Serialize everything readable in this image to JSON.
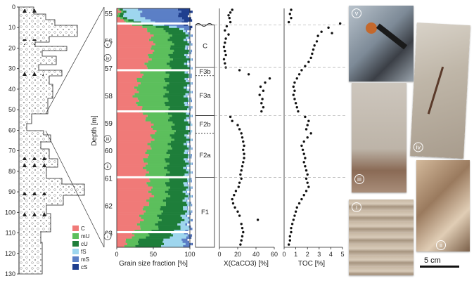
{
  "colors": {
    "C": "#f07a78",
    "mU": "#5cbf5c",
    "cU": "#1e7e3a",
    "fS": "#9ed6ee",
    "mS": "#5b7fc6",
    "cS": "#1f3f8f"
  },
  "log": {
    "depth_ticks": [
      "0",
      "10",
      "20",
      "30",
      "40",
      "50",
      "60",
      "70",
      "80",
      "90",
      "100",
      "110",
      "120",
      "130"
    ],
    "depth_label": "Depth [m]"
  },
  "legend": [
    {
      "key": "C",
      "label": "C"
    },
    {
      "key": "mU",
      "label": "mU"
    },
    {
      "key": "cU",
      "label": "cU"
    },
    {
      "key": "fS",
      "label": "fS"
    },
    {
      "key": "mS",
      "label": "mS"
    },
    {
      "key": "cS",
      "label": "cS"
    }
  ],
  "core_depths": [
    "55",
    "56",
    "57",
    "58",
    "59",
    "60",
    "61",
    "62",
    "63"
  ],
  "sample_markers": [
    "v",
    "iv",
    "iii",
    "ii",
    "i"
  ],
  "units": [
    "C",
    "F3b",
    "F3a",
    "F2b",
    "F2a",
    "F1"
  ],
  "chart_data": [
    {
      "type": "bar",
      "title": "",
      "xlabel": "Grain size fraction [%]",
      "xlim": [
        0,
        100
      ],
      "x_ticks": [
        "0",
        "50",
        "100"
      ],
      "series_names": [
        "C",
        "mU",
        "cU",
        "fS",
        "mS",
        "cS"
      ],
      "depth_range_m": [
        54.8,
        63.5
      ],
      "profile": [
        {
          "d": 54.8,
          "C": 2,
          "mU": 2,
          "cU": 4,
          "fS": 20,
          "mS": 55,
          "cS": 17
        },
        {
          "d": 55.2,
          "C": 3,
          "mU": 4,
          "cU": 6,
          "fS": 25,
          "mS": 50,
          "cS": 12
        },
        {
          "d": 55.6,
          "C": 45,
          "mU": 25,
          "cU": 24,
          "fS": 4,
          "mS": 2,
          "cS": 0
        },
        {
          "d": 56.2,
          "C": 50,
          "mU": 26,
          "cU": 20,
          "fS": 3,
          "mS": 1,
          "cS": 0
        },
        {
          "d": 56.8,
          "C": 42,
          "mU": 30,
          "cU": 24,
          "fS": 3,
          "mS": 1,
          "cS": 0
        },
        {
          "d": 57.4,
          "C": 30,
          "mU": 38,
          "cU": 28,
          "fS": 3,
          "mS": 1,
          "cS": 0
        },
        {
          "d": 58.0,
          "C": 25,
          "mU": 42,
          "cU": 28,
          "fS": 4,
          "mS": 1,
          "cS": 0
        },
        {
          "d": 58.6,
          "C": 35,
          "mU": 35,
          "cU": 25,
          "fS": 4,
          "mS": 1,
          "cS": 0
        },
        {
          "d": 59.2,
          "C": 52,
          "mU": 26,
          "cU": 19,
          "fS": 3,
          "mS": 0,
          "cS": 0
        },
        {
          "d": 59.8,
          "C": 45,
          "mU": 28,
          "cU": 22,
          "fS": 4,
          "mS": 1,
          "cS": 0
        },
        {
          "d": 60.4,
          "C": 38,
          "mU": 30,
          "cU": 27,
          "fS": 4,
          "mS": 1,
          "cS": 0
        },
        {
          "d": 61.0,
          "C": 42,
          "mU": 27,
          "cU": 25,
          "fS": 5,
          "mS": 1,
          "cS": 0
        },
        {
          "d": 61.6,
          "C": 48,
          "mU": 22,
          "cU": 24,
          "fS": 5,
          "mS": 1,
          "cS": 0
        },
        {
          "d": 62.2,
          "C": 36,
          "mU": 24,
          "cU": 33,
          "fS": 6,
          "mS": 1,
          "cS": 0
        },
        {
          "d": 62.8,
          "C": 30,
          "mU": 25,
          "cU": 30,
          "fS": 12,
          "mS": 3,
          "cS": 0
        },
        {
          "d": 63.4,
          "C": 10,
          "mU": 15,
          "cU": 35,
          "fS": 30,
          "mS": 9,
          "cS": 1
        }
      ]
    },
    {
      "type": "scatter",
      "title": "",
      "xlabel": "X(CaCO3) [%]",
      "xlim": [
        0,
        60
      ],
      "x_ticks": [
        "0",
        "20",
        "40",
        "60"
      ],
      "points": [
        [
          14,
          54.85
        ],
        [
          12,
          54.95
        ],
        [
          10,
          55.05
        ],
        [
          11,
          55.15
        ],
        [
          12,
          55.3
        ],
        [
          8,
          55.45
        ],
        [
          6,
          55.6
        ],
        [
          10,
          55.75
        ],
        [
          7,
          55.9
        ],
        [
          6,
          56.05
        ],
        [
          5,
          56.2
        ],
        [
          6,
          56.35
        ],
        [
          7,
          56.5
        ],
        [
          5,
          56.65
        ],
        [
          6,
          56.8
        ],
        [
          7,
          56.95
        ],
        [
          22,
          57.05
        ],
        [
          32,
          57.2
        ],
        [
          55,
          57.35
        ],
        [
          50,
          57.5
        ],
        [
          45,
          57.65
        ],
        [
          48,
          57.8
        ],
        [
          44,
          57.95
        ],
        [
          47,
          58.1
        ],
        [
          46,
          58.25
        ],
        [
          48,
          58.4
        ],
        [
          46,
          58.55
        ],
        [
          12,
          58.75
        ],
        [
          14,
          58.9
        ],
        [
          20,
          59.05
        ],
        [
          22,
          59.2
        ],
        [
          24,
          59.35
        ],
        [
          25,
          59.5
        ],
        [
          26,
          59.65
        ],
        [
          27,
          59.8
        ],
        [
          26,
          59.95
        ],
        [
          27,
          60.1
        ],
        [
          27,
          60.25
        ],
        [
          26,
          60.4
        ],
        [
          25,
          60.55
        ],
        [
          24,
          60.7
        ],
        [
          23,
          60.85
        ],
        [
          24,
          61.0
        ],
        [
          22,
          61.15
        ],
        [
          21,
          61.3
        ],
        [
          18,
          61.45
        ],
        [
          16,
          61.6
        ],
        [
          14,
          61.75
        ],
        [
          15,
          61.9
        ],
        [
          17,
          62.05
        ],
        [
          20,
          62.2
        ],
        [
          22,
          62.35
        ],
        [
          42,
          62.5
        ],
        [
          24,
          62.65
        ],
        [
          25,
          62.8
        ],
        [
          26,
          62.95
        ],
        [
          25,
          63.1
        ],
        [
          24,
          63.25
        ],
        [
          23,
          63.4
        ]
      ]
    },
    {
      "type": "scatter",
      "title": "",
      "xlabel": "TOC [%]",
      "xlim": [
        0,
        5
      ],
      "x_ticks": [
        "0",
        "1",
        "2",
        "3",
        "4",
        "5"
      ],
      "points": [
        [
          0.6,
          54.85
        ],
        [
          0.5,
          55.0
        ],
        [
          0.6,
          55.15
        ],
        [
          0.4,
          55.3
        ],
        [
          4.8,
          55.35
        ],
        [
          3.8,
          55.5
        ],
        [
          3.2,
          55.65
        ],
        [
          2.9,
          55.8
        ],
        [
          4.1,
          55.7
        ],
        [
          2.8,
          56.0
        ],
        [
          2.6,
          56.15
        ],
        [
          2.5,
          56.3
        ],
        [
          2.4,
          56.45
        ],
        [
          2.3,
          56.6
        ],
        [
          2.1,
          56.75
        ],
        [
          1.8,
          56.9
        ],
        [
          1.5,
          57.05
        ],
        [
          1.3,
          57.2
        ],
        [
          1.1,
          57.35
        ],
        [
          0.9,
          57.5
        ],
        [
          0.8,
          57.65
        ],
        [
          0.9,
          57.8
        ],
        [
          0.8,
          57.95
        ],
        [
          0.9,
          58.1
        ],
        [
          1.0,
          58.25
        ],
        [
          1.1,
          58.4
        ],
        [
          1.2,
          58.55
        ],
        [
          1.8,
          58.75
        ],
        [
          2.1,
          58.9
        ],
        [
          2.0,
          59.05
        ],
        [
          1.9,
          59.2
        ],
        [
          2.3,
          59.35
        ],
        [
          2.0,
          59.5
        ],
        [
          1.7,
          59.65
        ],
        [
          1.5,
          59.8
        ],
        [
          1.6,
          59.95
        ],
        [
          1.7,
          60.1
        ],
        [
          1.8,
          60.25
        ],
        [
          1.7,
          60.4
        ],
        [
          1.8,
          60.55
        ],
        [
          1.9,
          60.7
        ],
        [
          2.0,
          60.85
        ],
        [
          1.9,
          61.0
        ],
        [
          2.0,
          61.15
        ],
        [
          2.1,
          61.3
        ],
        [
          1.9,
          61.45
        ],
        [
          1.7,
          61.6
        ],
        [
          1.5,
          61.75
        ],
        [
          1.3,
          61.9
        ],
        [
          1.1,
          62.05
        ],
        [
          1.0,
          62.2
        ],
        [
          0.9,
          62.35
        ],
        [
          0.8,
          62.5
        ],
        [
          0.7,
          62.65
        ],
        [
          0.6,
          62.8
        ],
        [
          0.6,
          62.95
        ],
        [
          0.5,
          63.1
        ],
        [
          0.5,
          63.25
        ],
        [
          0.4,
          63.4
        ]
      ]
    }
  ],
  "photos": [
    {
      "label": "v"
    },
    {
      "label": "iv"
    },
    {
      "label": "iii"
    },
    {
      "label": "ii"
    },
    {
      "label": "i"
    }
  ],
  "scale_label": "5 cm"
}
